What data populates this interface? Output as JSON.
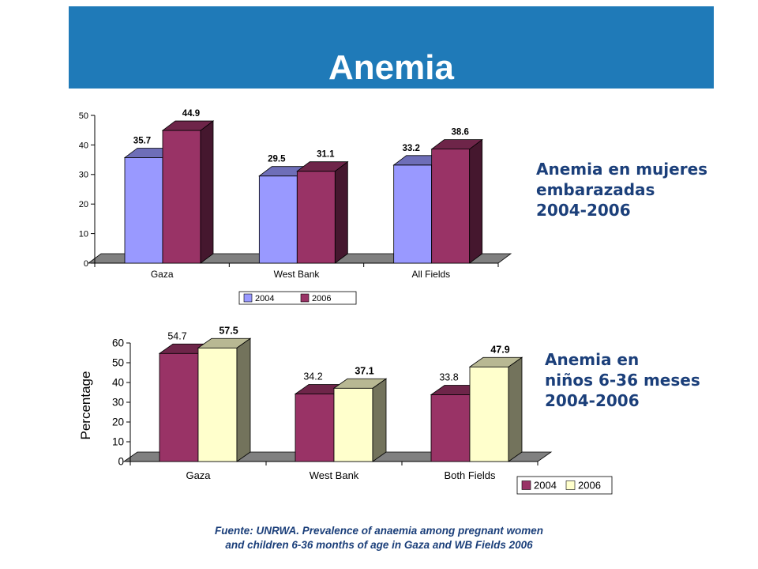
{
  "slide": {
    "title": "Anemia",
    "women_label": [
      "Anemia en mujeres",
      "embarazadas",
      "2004-2006"
    ],
    "children_label": [
      "Anemia en",
      "niños 6-36 meses",
      "2004-2006"
    ],
    "source": [
      "Fuente: UNRWA. Prevalence of anaemia among pregnant women",
      "and children 6-36 months of age in Gaza and WB Fields 2006"
    ]
  },
  "colors": {
    "banner": "#1f7ab8",
    "side_text": "#1b3f7a",
    "women_2004": "#9999ff",
    "women_2006": "#993366",
    "children_2004": "#993366",
    "children_2006": "#ffffcc",
    "floor": "#808080"
  },
  "chart_data": [
    {
      "type": "bar",
      "categories": [
        "Gaza",
        "West Bank",
        "All Fields"
      ],
      "series": [
        {
          "name": "2004",
          "values": [
            35.7,
            29.5,
            33.2
          ],
          "labels": [
            "35.7",
            "29.5",
            "33.2"
          ]
        },
        {
          "name": "2006",
          "values": [
            44.9,
            31.1,
            38.6
          ],
          "labels": [
            "44.9",
            "31.1",
            "38.6"
          ]
        }
      ],
      "ylim": [
        0,
        50
      ],
      "yticks": [
        "0",
        "10",
        "20",
        "30",
        "40",
        "50"
      ],
      "xlabel": "",
      "ylabel": "",
      "legend": "bottom"
    },
    {
      "type": "bar",
      "categories": [
        "Gaza",
        "West Bank",
        "Both Fields"
      ],
      "series": [
        {
          "name": "2004",
          "values": [
            54.7,
            34.2,
            33.8
          ],
          "labels": [
            "54.7",
            "34.2",
            "33.8"
          ]
        },
        {
          "name": "2006",
          "values": [
            57.5,
            37.1,
            47.9
          ],
          "labels": [
            "57.5",
            "37.1",
            "47.9"
          ]
        }
      ],
      "ylim": [
        0,
        60
      ],
      "yticks": [
        "0",
        "10",
        "20",
        "30",
        "40",
        "50",
        "60"
      ],
      "xlabel": "",
      "ylabel": "Percentage",
      "legend": "bottom-right"
    }
  ]
}
